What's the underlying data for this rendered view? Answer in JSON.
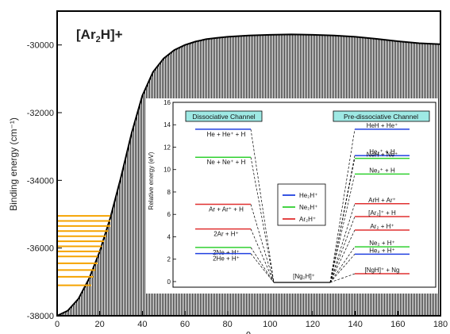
{
  "chart_data": [
    {
      "type": "area",
      "title": "[Ar2H]+",
      "title_parts": [
        "[Ar",
        "2",
        "H]+"
      ],
      "xlabel": "θ",
      "ylabel": "Binding energy (cm⁻¹)",
      "xlim": [
        0,
        180
      ],
      "ylim": [
        -38000,
        -29000
      ],
      "x_ticks": [
        0,
        20,
        40,
        60,
        80,
        100,
        120,
        140,
        160,
        180
      ],
      "x_tick_labels": [
        "0",
        "20",
        "40",
        "60",
        "80",
        "100",
        "120",
        "140",
        "160",
        "180"
      ],
      "y_ticks": [
        -38000,
        -36000,
        -34000,
        -32000,
        -30000
      ],
      "y_tick_labels": [
        "-38000",
        "-36000",
        "-34000",
        "-32000",
        "-30000"
      ],
      "curve": {
        "x": [
          0,
          5,
          10,
          15,
          20,
          25,
          30,
          35,
          40,
          45,
          50,
          55,
          60,
          65,
          70,
          75,
          80,
          90,
          100,
          110,
          120,
          130,
          140,
          150,
          160,
          170,
          180
        ],
        "y": [
          -38000,
          -37850,
          -37500,
          -36900,
          -36100,
          -35100,
          -33900,
          -32600,
          -31500,
          -30800,
          -30400,
          -30150,
          -30000,
          -29900,
          -29830,
          -29790,
          -29760,
          -29720,
          -29700,
          -29690,
          -29700,
          -29720,
          -29760,
          -29820,
          -29890,
          -29950,
          -29980
        ]
      },
      "levels": {
        "color": "#f5a300",
        "y": [
          -35050,
          -35200,
          -35350,
          -35500,
          -35650,
          -35800,
          -35950,
          -36100,
          -36250,
          -36450,
          -36650,
          -36850,
          -37100
        ],
        "x_end": [
          25,
          25,
          25,
          24,
          23,
          22,
          21,
          20,
          19,
          19,
          18,
          17,
          16
        ]
      },
      "fill_color": "#222222",
      "grid": false
    },
    {
      "type": "line",
      "ylabel": "Relative energy (eV)",
      "ylim": [
        -0.5,
        16
      ],
      "y_ticks": [
        0,
        2,
        4,
        6,
        8,
        10,
        12,
        14,
        16
      ],
      "y_tick_labels": [
        "0",
        "2",
        "4",
        "6",
        "8",
        "10",
        "12",
        "14",
        "16"
      ],
      "left_header": "Dissociative Channel",
      "right_header": "Pre-dissociative Channel",
      "header_color": "#9ee9e4",
      "central_label": "[Ng₂H]⁺",
      "legend": {
        "placement": "center",
        "entries": [
          {
            "label": "He₂H⁺",
            "color": "#2040e0"
          },
          {
            "label": "Ne₂H⁺",
            "color": "#30d030"
          },
          {
            "label": "Ar₂H⁺",
            "color": "#e03030"
          }
        ]
      },
      "left_levels": [
        {
          "label": "He + He⁺ + H",
          "y": 13.6,
          "color": "#2040e0"
        },
        {
          "label": "Ne + Ne⁺ + H",
          "y": 11.1,
          "color": "#30d030"
        },
        {
          "label": "Ar + Ar⁺ + H",
          "y": 6.9,
          "color": "#e03030"
        },
        {
          "label": "2Ar + H⁺",
          "y": 4.7,
          "color": "#e03030"
        },
        {
          "label": "2Ne + H⁺",
          "y": 3.05,
          "color": "#30d030"
        },
        {
          "label": "2He + H⁺",
          "y": 2.5,
          "color": "#2040e0"
        }
      ],
      "right_levels": [
        {
          "label": "HeH + He⁺",
          "y": 13.6,
          "color": "#2040e0"
        },
        {
          "label": "He₂⁺ + H",
          "y": 11.25,
          "color": "#2040e0"
        },
        {
          "label": "NeH + Ne⁺",
          "y": 11.0,
          "color": "#30d030"
        },
        {
          "label": "Ne₂⁺ + H",
          "y": 9.6,
          "color": "#30d030"
        },
        {
          "label": "ArH + Ar⁺",
          "y": 6.95,
          "color": "#e03030"
        },
        {
          "label": "[Ar₂]⁺ + H",
          "y": 5.8,
          "color": "#e03030"
        },
        {
          "label": "Ar₂ + H⁺",
          "y": 4.6,
          "color": "#e03030"
        },
        {
          "label": "Ne₂ + H⁺",
          "y": 3.1,
          "color": "#30d030"
        },
        {
          "label": "He₂ + H⁺",
          "y": 2.45,
          "color": "#2040e0"
        },
        {
          "label": "[NgH]⁺ + Ng",
          "y": 0.7,
          "color": "#e03030"
        }
      ]
    }
  ]
}
